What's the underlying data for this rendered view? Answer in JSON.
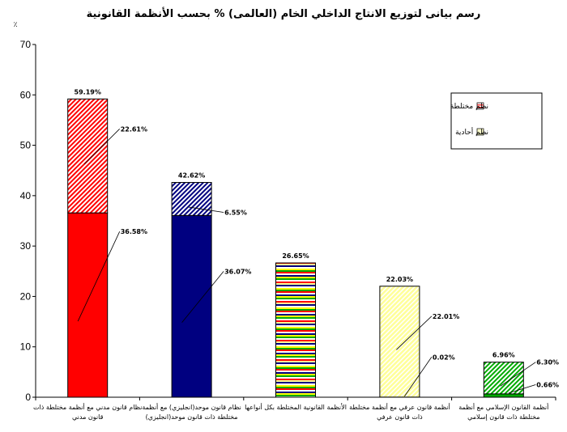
{
  "chart_data": {
    "type": "bar",
    "stacked": true,
    "title": "رسم بيانى لتوزيع الانتاج الداخلي الخام (العالمى) % بحسب الأنظمة القانونية",
    "ylabel": "٪",
    "ylim": [
      0,
      70
    ],
    "yticks": [
      0,
      10,
      20,
      30,
      40,
      50,
      60,
      70
    ],
    "grid": false,
    "legend_position": "top-right",
    "categories": [
      [
        "نظام قانون مدني  مع أنظمة مختلطة ذات",
        "قانون مدني"
      ],
      [
        "نظام قانون موحد(انجليزي)  مع أنظمة",
        "مختلطة ذات قانون موحد(انجليزي)"
      ],
      [
        "الأنظمة القانونية المختلطة بكل أنواعها"
      ],
      [
        "أنظمة قانون عرفي مع أنظمة مختلطة",
        "ذات قانون عرفي"
      ],
      [
        "أنظمة القانون الإسلامي مع أنظمة",
        "مختلطة ذات قانون إسلامي"
      ]
    ],
    "series": [
      {
        "name": "نظم أحادية",
        "values": [
          36.58,
          36.07,
          null,
          0.02,
          0.66
        ],
        "labels": [
          "36.58%",
          "36.07%",
          "",
          "0.02%",
          "0.66%"
        ]
      },
      {
        "name": "نظم مختلطة",
        "values": [
          22.61,
          6.55,
          26.65,
          22.01,
          6.3
        ],
        "labels": [
          "22.61%",
          "6.55%",
          "",
          "22.01%",
          "6.30%"
        ]
      }
    ],
    "totals": [
      59.19,
      42.62,
      26.65,
      22.03,
      6.96
    ],
    "total_labels": [
      "59.19%",
      "42.62%",
      "26.65%",
      "22.03%",
      "6.96%"
    ],
    "colors": {
      "bar1_base": "#ff0000",
      "bar1_top": "#ff0000",
      "bar2_base": "#000080",
      "bar2_top": "#000080",
      "bar4_base": "#ffff66",
      "bar5_base": "#00aa00",
      "legend_mixed": "#ff3333",
      "legend_single": "#ffffcc"
    }
  }
}
